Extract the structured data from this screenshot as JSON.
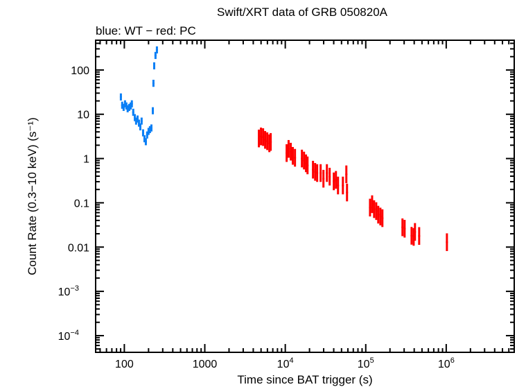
{
  "chart_data": {
    "type": "scatter",
    "title": "Swift/XRT data of GRB 050820A",
    "subtitle": "blue: WT − red: PC",
    "xlabel": "Time since BAT trigger (s)",
    "ylabel": "Count Rate (0.3−10 keV) (s⁻¹)",
    "xscale": "log",
    "yscale": "log",
    "xlim": [
      44,
      7000000
    ],
    "ylim": [
      4.2e-05,
      470
    ],
    "grid": false,
    "x_ticks": [
      {
        "value": 100,
        "label": "100"
      },
      {
        "value": 1000,
        "label": "1000"
      },
      {
        "value": 10000,
        "label": "10",
        "exp": "4"
      },
      {
        "value": 100000,
        "label": "10",
        "exp": "5"
      },
      {
        "value": 1000000,
        "label": "10",
        "exp": "6"
      }
    ],
    "y_ticks": [
      {
        "value": 100,
        "label": "100"
      },
      {
        "value": 10,
        "label": "10"
      },
      {
        "value": 1,
        "label": "1"
      },
      {
        "value": 0.1,
        "label": "0.1"
      },
      {
        "value": 0.01,
        "label": "0.01"
      },
      {
        "value": 0.001,
        "label": "10",
        "exp": "−3"
      },
      {
        "value": 0.0001,
        "label": "10",
        "exp": "−4"
      }
    ],
    "series": [
      {
        "name": "WT",
        "color": "#0a7ff5",
        "err_dex": 0.08,
        "points": [
          [
            90.6,
            24.6
          ],
          [
            94,
            16
          ],
          [
            98,
            14.3
          ],
          [
            102,
            17.2
          ],
          [
            106,
            15.4
          ],
          [
            110,
            13.3
          ],
          [
            115,
            14.3
          ],
          [
            120,
            15.4
          ],
          [
            124,
            17.2
          ],
          [
            129,
            11.1
          ],
          [
            135,
            8.4
          ],
          [
            140,
            7.0
          ],
          [
            146,
            7.8
          ],
          [
            152,
            6.3
          ],
          [
            158,
            5.2
          ],
          [
            164,
            7.0
          ],
          [
            171,
            3.8
          ],
          [
            178,
            2.8
          ],
          [
            185,
            2.4
          ],
          [
            192,
            3.4
          ],
          [
            200,
            4.1
          ],
          [
            208,
            4.5
          ],
          [
            217,
            4.9
          ],
          [
            226,
            12
          ],
          [
            230,
            50
          ],
          [
            235,
            124
          ],
          [
            244,
            213
          ],
          [
            254,
            284
          ]
        ]
      },
      {
        "name": "PC",
        "color": "#ff0000",
        "err_dex": 0.2,
        "points": [
          [
            4700,
            2.84
          ],
          [
            4990,
            3.16
          ],
          [
            5300,
            3.05
          ],
          [
            5620,
            2.64
          ],
          [
            5970,
            2.46
          ],
          [
            6340,
            2.21
          ],
          [
            6590,
            2.37
          ],
          [
            10400,
            1.33
          ],
          [
            11000,
            1.65
          ],
          [
            11700,
            1.43
          ],
          [
            12400,
            1.15
          ],
          [
            13200,
            1.04
          ],
          [
            16100,
            1.0
          ],
          [
            17100,
            0.9
          ],
          [
            18100,
            0.78
          ],
          [
            18900,
            0.7
          ],
          [
            22100,
            0.56
          ],
          [
            23500,
            0.5
          ],
          [
            24900,
            0.47
          ],
          [
            27500,
            0.47
          ],
          [
            29800,
            0.35
          ],
          [
            32900,
            0.47
          ],
          [
            35600,
            0.39
          ],
          [
            40100,
            0.305
          ],
          [
            42600,
            0.33
          ],
          [
            45200,
            0.246
          ],
          [
            52000,
            0.246
          ],
          [
            57400,
            0.44
          ],
          [
            58500,
            0.171
          ],
          [
            113000,
            0.078
          ],
          [
            120000,
            0.093
          ],
          [
            127000,
            0.072
          ],
          [
            135000,
            0.065
          ],
          [
            143000,
            0.054
          ],
          [
            152000,
            0.049
          ],
          [
            161000,
            0.045
          ],
          [
            286000,
            0.028
          ],
          [
            304000,
            0.026
          ],
          [
            371000,
            0.018
          ],
          [
            394000,
            0.017
          ],
          [
            409000,
            0.022
          ],
          [
            461000,
            0.0178
          ],
          [
            1020000,
            0.0129
          ]
        ]
      }
    ]
  }
}
